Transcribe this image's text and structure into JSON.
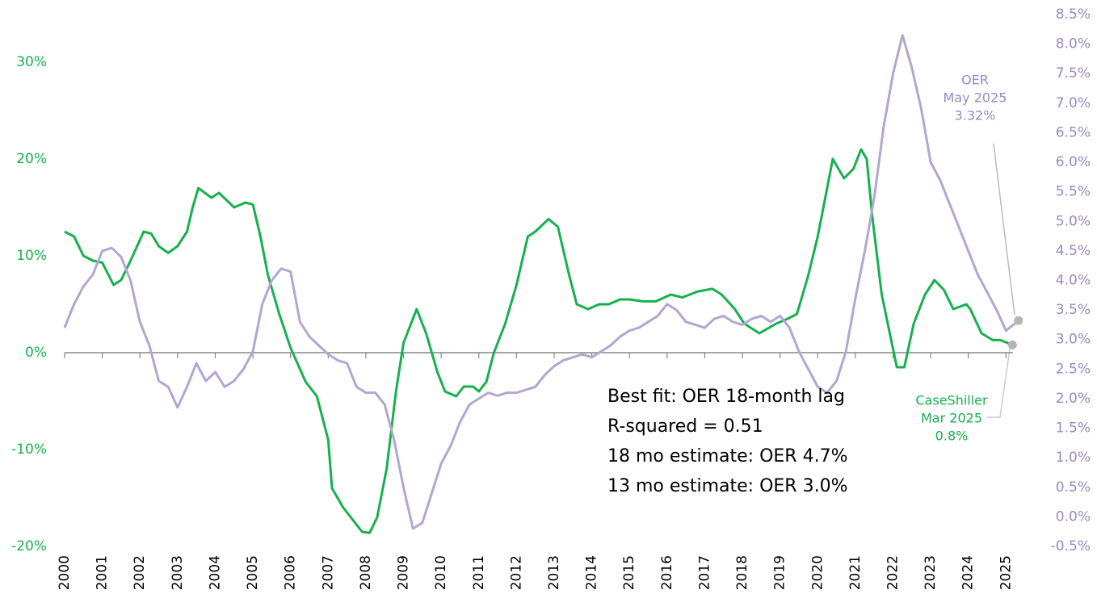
{
  "chart_data": {
    "type": "line",
    "series": [
      {
        "name": "CaseShiller",
        "color": "#16b14f",
        "axis": "y",
        "label_date": "Mar 2025",
        "label_value": "0.8%",
        "x": [
          2000,
          2000.25,
          2000.5,
          2000.75,
          2001,
          2001.3,
          2001.5,
          2001.75,
          2002.1,
          2002.3,
          2002.5,
          2002.75,
          2003,
          2003.25,
          2003.4,
          2003.55,
          2003.9,
          2004.1,
          2004.5,
          2004.8,
          2005,
          2005.2,
          2005.4,
          2005.7,
          2006,
          2006.4,
          2006.7,
          2007,
          2007.1,
          2007.4,
          2007.6,
          2007.9,
          2008.1,
          2008.3,
          2008.55,
          2008.8,
          2009,
          2009.35,
          2009.6,
          2009.9,
          2010.1,
          2010.4,
          2010.6,
          2010.85,
          2011,
          2011.2,
          2011.4,
          2011.7,
          2012,
          2012.3,
          2012.5,
          2012.85,
          2013.1,
          2013.4,
          2013.6,
          2013.9,
          2014.2,
          2014.45,
          2014.75,
          2015,
          2015.35,
          2015.7,
          2016.1,
          2016.4,
          2016.8,
          2017.2,
          2017.45,
          2017.8,
          2018.05,
          2018.45,
          2018.9,
          2019.2,
          2019.45,
          2019.75,
          2020,
          2020.2,
          2020.4,
          2020.7,
          2020.95,
          2021.15,
          2021.3,
          2021.45,
          2021.7,
          2022.1,
          2022.3,
          2022.55,
          2022.85,
          2023.1,
          2023.35,
          2023.6,
          2023.95,
          2024.05,
          2024.35,
          2024.65,
          2024.85,
          2025.17
        ],
        "values": [
          12.5,
          12,
          10,
          9.5,
          9.3,
          7,
          7.5,
          9.5,
          12.5,
          12.3,
          11,
          10.3,
          11,
          12.5,
          15,
          17,
          16,
          16.5,
          15,
          15.5,
          15.3,
          12,
          8,
          4,
          0.5,
          -3,
          -4.5,
          -9,
          -14,
          -16,
          -17,
          -18.5,
          -18.6,
          -17,
          -12,
          -4,
          1,
          4.5,
          2,
          -2,
          -4,
          -4.5,
          -3.5,
          -3.5,
          -4,
          -3,
          0,
          3,
          7,
          12,
          12.5,
          13.8,
          13,
          8,
          5,
          4.5,
          5,
          5,
          5.5,
          5.5,
          5.3,
          5.3,
          6,
          5.7,
          6.3,
          6.6,
          6,
          4.5,
          3,
          2,
          3,
          3.5,
          4,
          8,
          12,
          16,
          20,
          18,
          19,
          21,
          20,
          14,
          6,
          -1.5,
          -1.5,
          3,
          6,
          7.5,
          6.5,
          4.5,
          5,
          4.5,
          2,
          1.3,
          1.3,
          0.8
        ]
      },
      {
        "name": "OER",
        "color": "#b3a6d0",
        "axis": "y2",
        "label_date": "May 2025",
        "label_value": "3.32%",
        "x": [
          2000,
          2000.25,
          2000.5,
          2000.75,
          2001,
          2001.25,
          2001.5,
          2001.75,
          2002,
          2002.25,
          2002.5,
          2002.75,
          2003,
          2003.25,
          2003.5,
          2003.75,
          2004,
          2004.25,
          2004.5,
          2004.75,
          2005,
          2005.25,
          2005.5,
          2005.75,
          2006,
          2006.25,
          2006.5,
          2006.75,
          2007,
          2007.25,
          2007.5,
          2007.75,
          2008,
          2008.25,
          2008.5,
          2008.75,
          2009,
          2009.25,
          2009.5,
          2009.75,
          2010,
          2010.25,
          2010.5,
          2010.75,
          2011,
          2011.25,
          2011.5,
          2011.75,
          2012,
          2012.25,
          2012.5,
          2012.75,
          2013,
          2013.25,
          2013.5,
          2013.75,
          2014,
          2014.25,
          2014.5,
          2014.75,
          2015,
          2015.25,
          2015.5,
          2015.75,
          2016,
          2016.25,
          2016.5,
          2016.75,
          2017,
          2017.25,
          2017.5,
          2017.75,
          2018,
          2018.25,
          2018.5,
          2018.75,
          2019,
          2019.25,
          2019.5,
          2019.75,
          2020,
          2020.25,
          2020.5,
          2020.75,
          2021,
          2021.25,
          2021.5,
          2021.75,
          2022,
          2022.25,
          2022.5,
          2022.75,
          2023,
          2023.25,
          2023.5,
          2023.75,
          2024,
          2024.25,
          2024.5,
          2024.75,
          2025,
          2025.33
        ],
        "values": [
          3.2,
          3.6,
          3.9,
          4.1,
          4.5,
          4.55,
          4.4,
          4.0,
          3.3,
          2.9,
          2.3,
          2.2,
          1.85,
          2.2,
          2.6,
          2.3,
          2.45,
          2.2,
          2.3,
          2.5,
          2.8,
          3.6,
          4.0,
          4.2,
          4.15,
          3.3,
          3.05,
          2.9,
          2.75,
          2.65,
          2.6,
          2.2,
          2.1,
          2.1,
          1.9,
          1.3,
          0.5,
          -0.2,
          -0.1,
          0.4,
          0.9,
          1.2,
          1.6,
          1.9,
          2.0,
          2.1,
          2.05,
          2.1,
          2.1,
          2.15,
          2.2,
          2.4,
          2.55,
          2.65,
          2.7,
          2.75,
          2.7,
          2.8,
          2.9,
          3.05,
          3.15,
          3.2,
          3.3,
          3.4,
          3.6,
          3.5,
          3.3,
          3.25,
          3.2,
          3.35,
          3.4,
          3.3,
          3.25,
          3.35,
          3.4,
          3.3,
          3.4,
          3.2,
          2.8,
          2.5,
          2.2,
          2.1,
          2.3,
          2.8,
          3.7,
          4.5,
          5.4,
          6.6,
          7.5,
          8.15,
          7.6,
          6.9,
          6.0,
          5.7,
          5.3,
          4.9,
          4.5,
          4.1,
          3.8,
          3.5,
          3.15,
          3.32
        ]
      }
    ],
    "xlim": [
      2000,
      2025.4
    ],
    "xticks": [
      2000,
      2001,
      2002,
      2003,
      2004,
      2005,
      2006,
      2007,
      2008,
      2009,
      2010,
      2011,
      2012,
      2013,
      2014,
      2015,
      2016,
      2017,
      2018,
      2019,
      2020,
      2021,
      2022,
      2023,
      2024,
      2025
    ],
    "ylim": [
      -20,
      34.92
    ],
    "yticks": [
      {
        "value": -20,
        "label": "-20%"
      },
      {
        "value": -10,
        "label": "-10%"
      },
      {
        "value": 0,
        "label": "0%"
      },
      {
        "value": 10,
        "label": "10%"
      },
      {
        "value": 20,
        "label": "20%"
      },
      {
        "value": 30,
        "label": "30%"
      }
    ],
    "y2lim": [
      -0.5,
      8.5
    ],
    "y2ticks": [
      {
        "value": -0.5,
        "label": "-0.5%"
      },
      {
        "value": 0,
        "label": "0.0%"
      },
      {
        "value": 0.5,
        "label": "0.5%"
      },
      {
        "value": 1,
        "label": "1.0%"
      },
      {
        "value": 1.5,
        "label": "1.5%"
      },
      {
        "value": 2,
        "label": "2.0%"
      },
      {
        "value": 2.5,
        "label": "2.5%"
      },
      {
        "value": 3,
        "label": "3.0%"
      },
      {
        "value": 3.5,
        "label": "3.5%"
      },
      {
        "value": 4,
        "label": "4.0%"
      },
      {
        "value": 4.5,
        "label": "4.5%"
      },
      {
        "value": 5,
        "label": "5.0%"
      },
      {
        "value": 5.5,
        "label": "5.5%"
      },
      {
        "value": 6,
        "label": "6.0%"
      },
      {
        "value": 6.5,
        "label": "6.5%"
      },
      {
        "value": 7,
        "label": "7.0%"
      },
      {
        "value": 7.5,
        "label": "7.5%"
      },
      {
        "value": 8,
        "label": "8.0%"
      },
      {
        "value": 8.5,
        "label": "8.5%"
      }
    ],
    "annotations": [
      "Best fit: OER 18-month lag",
      "R-squared = 0.51",
      "18 mo estimate: OER 4.7%",
      "13 mo estimate: OER 3.0%"
    ]
  }
}
